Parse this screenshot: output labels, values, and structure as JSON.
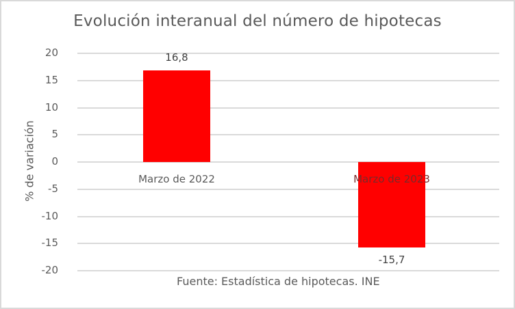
{
  "chart_data": {
    "type": "bar",
    "title": "Evolución interanual del número de hipotecas",
    "categories": [
      "Marzo de 2022",
      "Marzo de 2023"
    ],
    "values": [
      16.8,
      -15.7
    ],
    "data_labels": [
      "16,8",
      "-15,7"
    ],
    "xlabel": "",
    "ylabel": "% de variación",
    "ylim": [
      -20,
      20
    ],
    "yticks": [
      "20",
      "15",
      "10",
      "5",
      "0",
      "-5",
      "-10",
      "-15",
      "-20"
    ],
    "grid": true,
    "legend": null,
    "bar_color": "#ff0000",
    "source": "Fuente: Estadística de hipotecas. INE"
  }
}
